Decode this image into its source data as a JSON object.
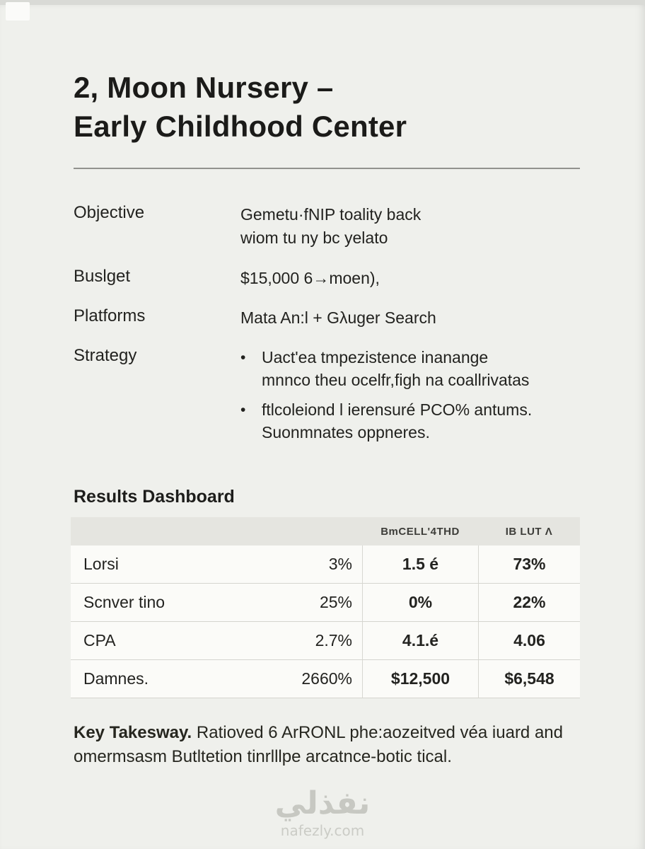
{
  "title": {
    "line1": "2, Moon Nursery –",
    "line2": "Early Childhood Center"
  },
  "details": [
    {
      "label": "Objective",
      "value": "Gemetu·fNIP toality back\nwiom tu ny bc yelato"
    },
    {
      "label": "Buslget",
      "value": "$15,000 6→moen),"
    },
    {
      "label": "Platforms",
      "value": "Mata An:l + Gλuger Search"
    },
    {
      "label": "Strategy"
    }
  ],
  "strategy_bullets": [
    "Uact'ea tmpezistence inanange\nmnnco theu ocelfr,figh na coallrivatas",
    "ftlcoleiond l ierensuré PCO% antums.\nSuonmnates oppneres."
  ],
  "dashboard": {
    "heading": "Results Dashboard",
    "table": {
      "col3_header": "BmCELL'4THD",
      "col4_header": "IB LUT Λ",
      "rows": [
        [
          "Lorsi",
          "3%",
          "1.5 é",
          "73%"
        ],
        [
          "Scnver tino",
          "25%",
          "0%",
          "22%"
        ],
        [
          "CPA",
          "2.7%",
          "4.1.é",
          "4.06"
        ],
        [
          "Damnes.",
          "2660%",
          "$12,500",
          "$6,548"
        ]
      ]
    }
  },
  "takeaway": {
    "label": "Key Takesway.",
    "text": "Ratioved 6 ArRONL phe:aozeitved véa iuard and omermsasm Butltetion tinrlllpe arcatnce-botic tical."
  },
  "watermark": {
    "arabic": "نفذلي",
    "site": "nafezly.com"
  }
}
